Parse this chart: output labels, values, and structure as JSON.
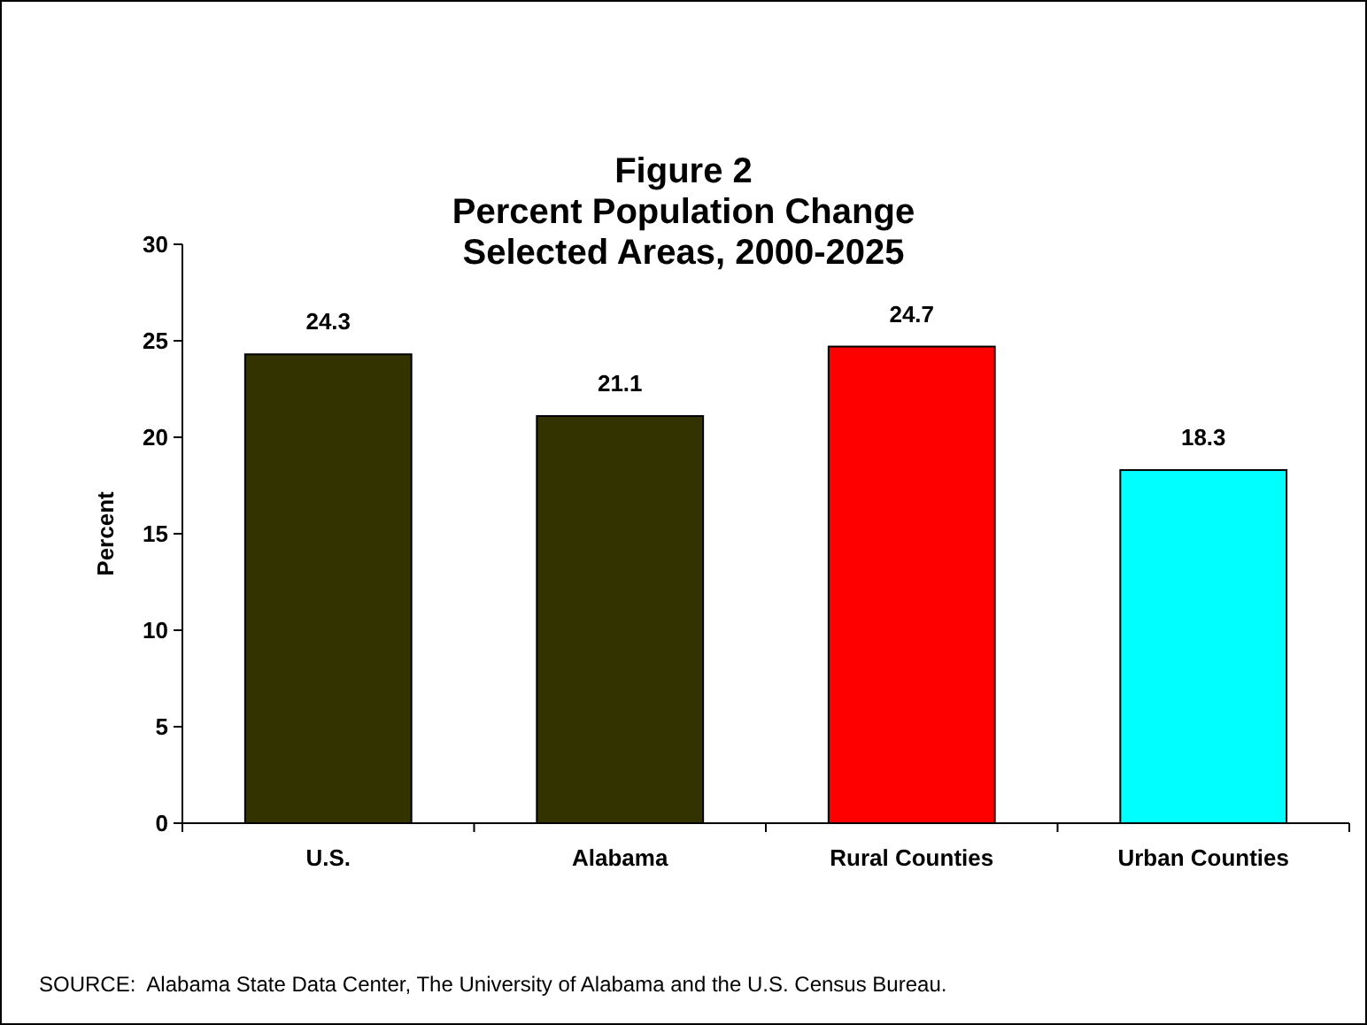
{
  "chart_data": {
    "type": "bar",
    "title": "Figure 2\nPercent Population Change\nSelected Areas, 2000-2025",
    "ylabel": "Percent",
    "categories": [
      "U.S.",
      "Alabama",
      "Rural Counties",
      "Urban Counties"
    ],
    "values": [
      24.3,
      21.1,
      24.7,
      18.3
    ],
    "colors": [
      "#333300",
      "#333300",
      "#ff0000",
      "#00ffff"
    ],
    "ylim": [
      0,
      30
    ],
    "yticks": [
      0,
      5,
      10,
      15,
      20,
      25,
      30
    ],
    "grid": false,
    "data_labels": true,
    "annotations": [
      "SOURCE:  Alabama State Data Center, The University of Alabama and the U.S. Census Bureau."
    ]
  }
}
